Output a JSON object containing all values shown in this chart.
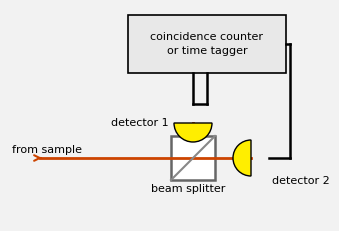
{
  "bg_color": "#f2f2f2",
  "box_color": "#e8e8e8",
  "box_edge_color": "#000000",
  "box_text": "coincidence counter\nor time tagger",
  "beam_color": "#cc4400",
  "wire_color": "#000000",
  "detector_color": "#ffee00",
  "detector_edge_color": "#000000",
  "beam_splitter_label": "beam splitter",
  "detector1_label": "detector 1",
  "detector2_label": "detector 2",
  "from_sample_label": "from sample",
  "font_size": 8.0
}
